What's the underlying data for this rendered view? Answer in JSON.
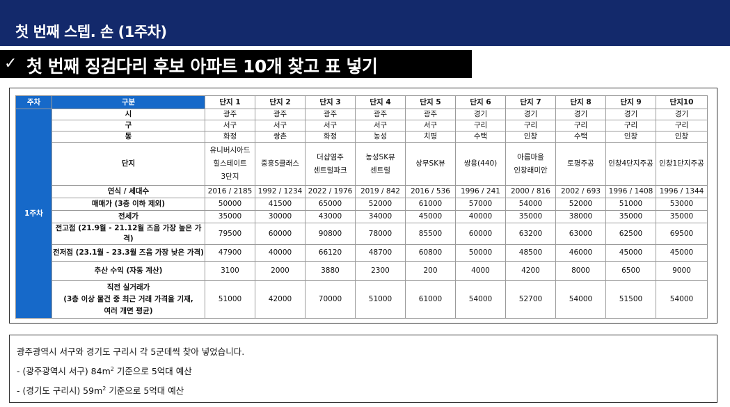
{
  "header": {
    "title": "첫 번째 스텝. 손 (1주차)"
  },
  "subtitle": {
    "check": "✓",
    "text": "첫 번째 징검다리 후보 아파트 10개 찾고 표 넣기"
  },
  "table": {
    "head_week": "주차",
    "head_category": "구분",
    "week_label": "1주차",
    "columns": [
      "단지 1",
      "단지 2",
      "단지 3",
      "단지 4",
      "단지 5",
      "단지 6",
      "단지 7",
      "단지 8",
      "단지 9",
      "단지10"
    ],
    "rows": [
      {
        "label": "시",
        "values": [
          "광주",
          "광주",
          "광주",
          "광주",
          "광주",
          "경기",
          "경기",
          "경기",
          "경기",
          "경기"
        ]
      },
      {
        "label": "구",
        "values": [
          "서구",
          "서구",
          "서구",
          "서구",
          "서구",
          "구리",
          "구리",
          "구리",
          "구리",
          "구리"
        ]
      },
      {
        "label": "동",
        "values": [
          "화정",
          "쌍촌",
          "화정",
          "농성",
          "치평",
          "수택",
          "인창",
          "수택",
          "인창",
          "인창"
        ]
      },
      {
        "label": "단지",
        "values": [
          [
            "유니버시아드",
            "힐스테이트",
            "3단지"
          ],
          [
            "중흥S클래스"
          ],
          [
            "더샵염주",
            "센트럴파크"
          ],
          [
            "농성SK뷰",
            "센트럴"
          ],
          [
            "상무SK뷰"
          ],
          [
            "쌍용(440)"
          ],
          [
            "아름마을",
            "인창래미안"
          ],
          [
            "토평주공"
          ],
          [
            "인창4단지주공"
          ],
          [
            "인창1단지주공"
          ]
        ]
      },
      {
        "label": "연식 / 세대수",
        "values": [
          "2016 / 2185",
          "1992 / 1234",
          "2022 / 1976",
          "2019 / 842",
          "2016 / 536",
          "1996 / 241",
          "2000 / 816",
          "2002 / 693",
          "1996 / 1408",
          "1996 / 1344"
        ]
      },
      {
        "label": "매매가 (3층 이하 제외)",
        "values": [
          "50000",
          "41500",
          "65000",
          "52000",
          "61000",
          "57000",
          "54000",
          "52000",
          "51000",
          "53000"
        ]
      },
      {
        "label": "전세가",
        "values": [
          "35000",
          "30000",
          "43000",
          "34000",
          "45000",
          "40000",
          "35000",
          "38000",
          "35000",
          "35000"
        ]
      },
      {
        "label": "전고점 (21.9월 - 21.12월 즈음 가장 높은 가격)",
        "values": [
          "79500",
          "60000",
          "90800",
          "78000",
          "85500",
          "60000",
          "63200",
          "63000",
          "62500",
          "69500"
        ]
      },
      {
        "label": "전저점 (23.1월 - 23.3월 즈음 가장 낮은 가격)",
        "values": [
          "47900",
          "40000",
          "66120",
          "48700",
          "60800",
          "50000",
          "48500",
          "46000",
          "45000",
          "45000"
        ]
      },
      {
        "label": "추산 수익 (자동 계산)",
        "values": [
          "3100",
          "2000",
          "3880",
          "2300",
          "200",
          "4000",
          "4200",
          "8000",
          "6500",
          "9000"
        ]
      },
      {
        "label": [
          "직전 실거래가",
          "(3층 이상 물건 중 최근 거래 가격을 기재,",
          "여러 개면 평균)"
        ],
        "values": [
          "51000",
          "42000",
          "70000",
          "51000",
          "61000",
          "54000",
          "52700",
          "54000",
          "51500",
          "54000"
        ]
      }
    ]
  },
  "notes": {
    "line1": "광주광역시 서구와 경기도 구리시 각 5군데씩 찾아 넣었습니다.",
    "line2_prefix": "- (광주광역시 서구) 84m",
    "line2_sup": "2",
    "line2_suffix": " 기준으로 5억대 예산",
    "line3_prefix": "- (경기도 구리시) 59m",
    "line3_sup": "2",
    "line3_suffix": " 기준으로 5억대 예산"
  },
  "colors": {
    "header_bg": "#13296b",
    "table_accent": "#1669c9",
    "subtitle_bg": "#000000"
  }
}
